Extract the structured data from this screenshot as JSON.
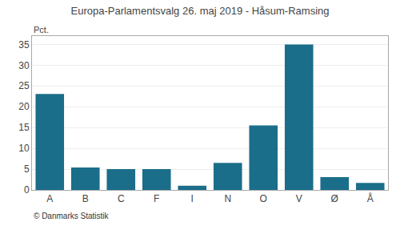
{
  "chart_data": {
    "type": "bar",
    "title": "Europa-Parlamentsvalg 26. maj 2019 - Håsum-Ramsing",
    "categories": [
      "A",
      "B",
      "C",
      "F",
      "I",
      "N",
      "O",
      "V",
      "Ø",
      "Å"
    ],
    "values": [
      23.1,
      5.4,
      5.0,
      5.0,
      1.0,
      6.5,
      15.5,
      35.0,
      3.1,
      1.7
    ],
    "color": "#1a6e8a",
    "y_label": "Pct.",
    "annotations": [
      "© Danmarks Statistik"
    ],
    "ylim": [
      0,
      37
    ],
    "yticks": [
      0,
      5,
      10,
      15,
      20,
      25,
      30,
      35
    ],
    "grid": true
  }
}
